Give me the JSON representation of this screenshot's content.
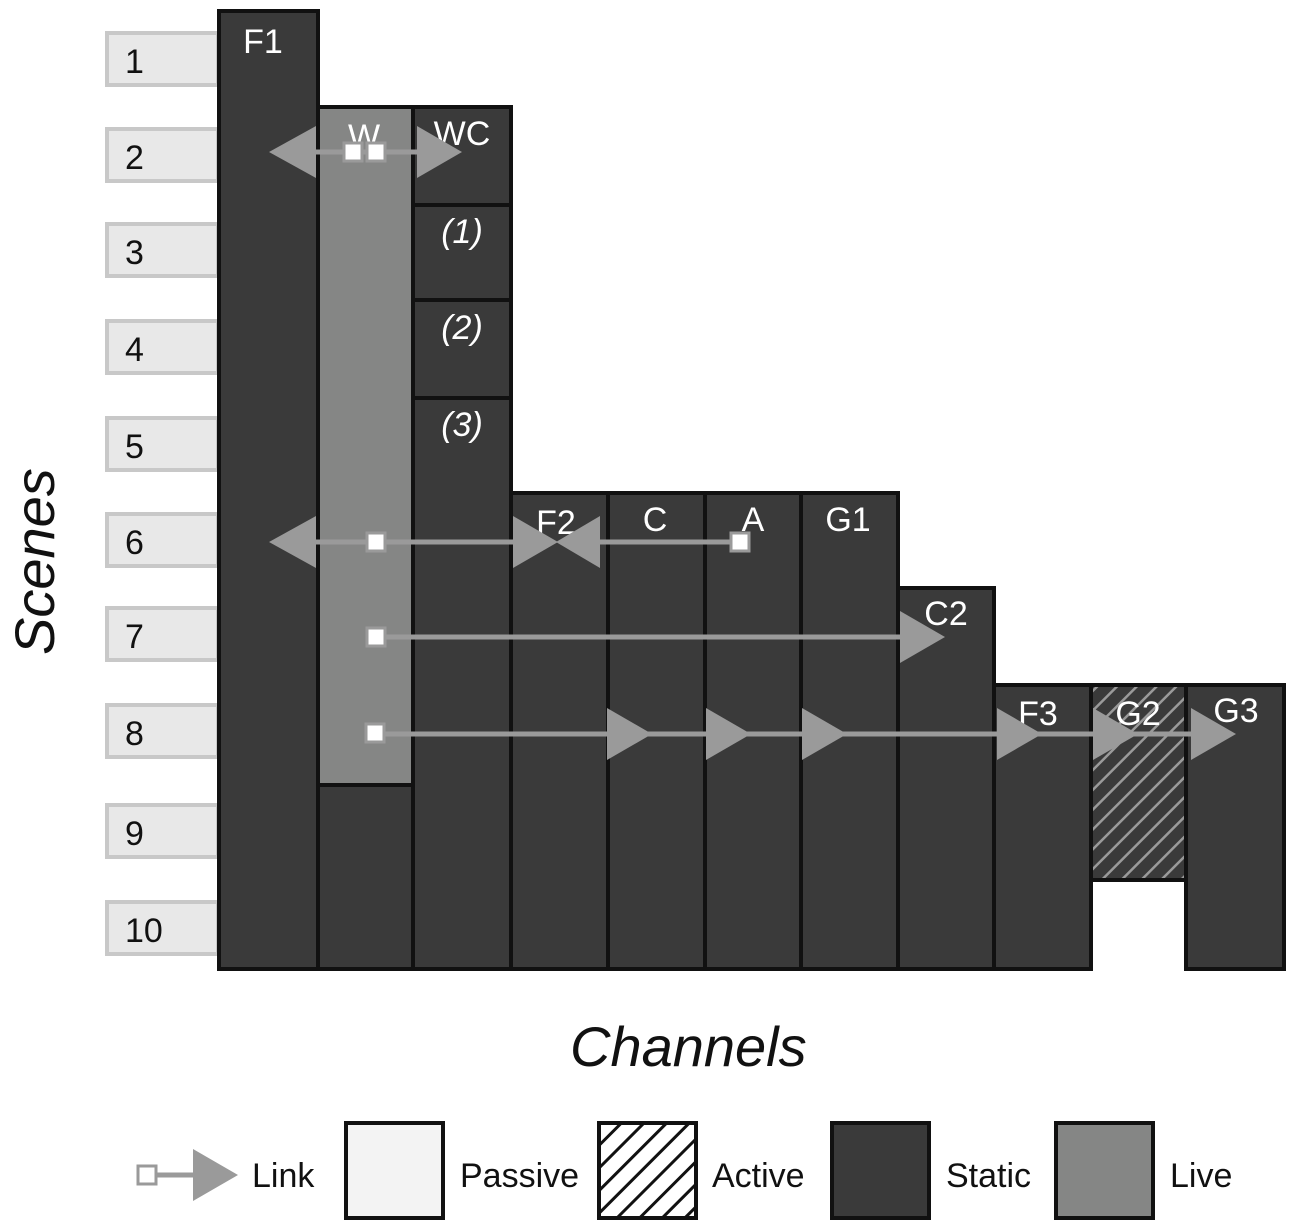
{
  "axes": {
    "y_label": "Scenes",
    "x_label": "Channels"
  },
  "scenes": [
    "1",
    "2",
    "3",
    "4",
    "5",
    "6",
    "7",
    "8",
    "9",
    "10"
  ],
  "channels": [
    {
      "label": "F1",
      "type": "static",
      "start_scene": 1,
      "end_scene": 10
    },
    {
      "label": "W",
      "type": "live",
      "start_scene": 2,
      "end_scene": 8,
      "then": "static",
      "then_end_scene": 10
    },
    {
      "label": "WC",
      "type": "static",
      "start_scene": 2,
      "end_scene": 10,
      "sub_sections": [
        {
          "label": "(1)",
          "scene": 3
        },
        {
          "label": "(2)",
          "scene": 4
        },
        {
          "label": "(3)",
          "scene": 5
        }
      ]
    },
    {
      "label": "F2",
      "type": "static",
      "start_scene": 6,
      "end_scene": 10
    },
    {
      "label": "C",
      "type": "static",
      "start_scene": 6,
      "end_scene": 10
    },
    {
      "label": "A",
      "type": "static",
      "start_scene": 6,
      "end_scene": 10
    },
    {
      "label": "G1",
      "type": "static",
      "start_scene": 6,
      "end_scene": 10
    },
    {
      "label": "C2",
      "type": "static",
      "start_scene": 7,
      "end_scene": 10
    },
    {
      "label": "F3",
      "type": "static",
      "start_scene": 8,
      "end_scene": 10
    },
    {
      "label": "G2",
      "type": "active",
      "start_scene": 8,
      "end_scene": 9
    },
    {
      "label": "G3",
      "type": "static",
      "start_scene": 8,
      "end_scene": 10
    }
  ],
  "links": [
    {
      "scene": 2,
      "from": "W",
      "to": [
        "F1",
        "WC"
      ]
    },
    {
      "scene": 6,
      "from": "W",
      "to": [
        "F1",
        "F2"
      ]
    },
    {
      "scene": 6,
      "from": "A",
      "to": [
        "F2"
      ]
    },
    {
      "scene": 7,
      "from": "W",
      "to": [
        "C2"
      ]
    },
    {
      "scene": 8,
      "from": "W",
      "to": [
        "C",
        "A",
        "G1",
        "F3",
        "G2",
        "G3"
      ]
    }
  ],
  "legend": [
    {
      "key": "link",
      "label": "Link"
    },
    {
      "key": "passive",
      "label": "Passive"
    },
    {
      "key": "active",
      "label": "Active"
    },
    {
      "key": "static",
      "label": "Static"
    },
    {
      "key": "live",
      "label": "Live"
    }
  ],
  "colors": {
    "static": "#3a3a3a",
    "live": "#858685",
    "passive": "#f3f3f3",
    "link": "#9a9a9a",
    "outline": "#111111",
    "scene_box": "#e8e8e8",
    "scene_box_border": "#c8c8c8"
  }
}
